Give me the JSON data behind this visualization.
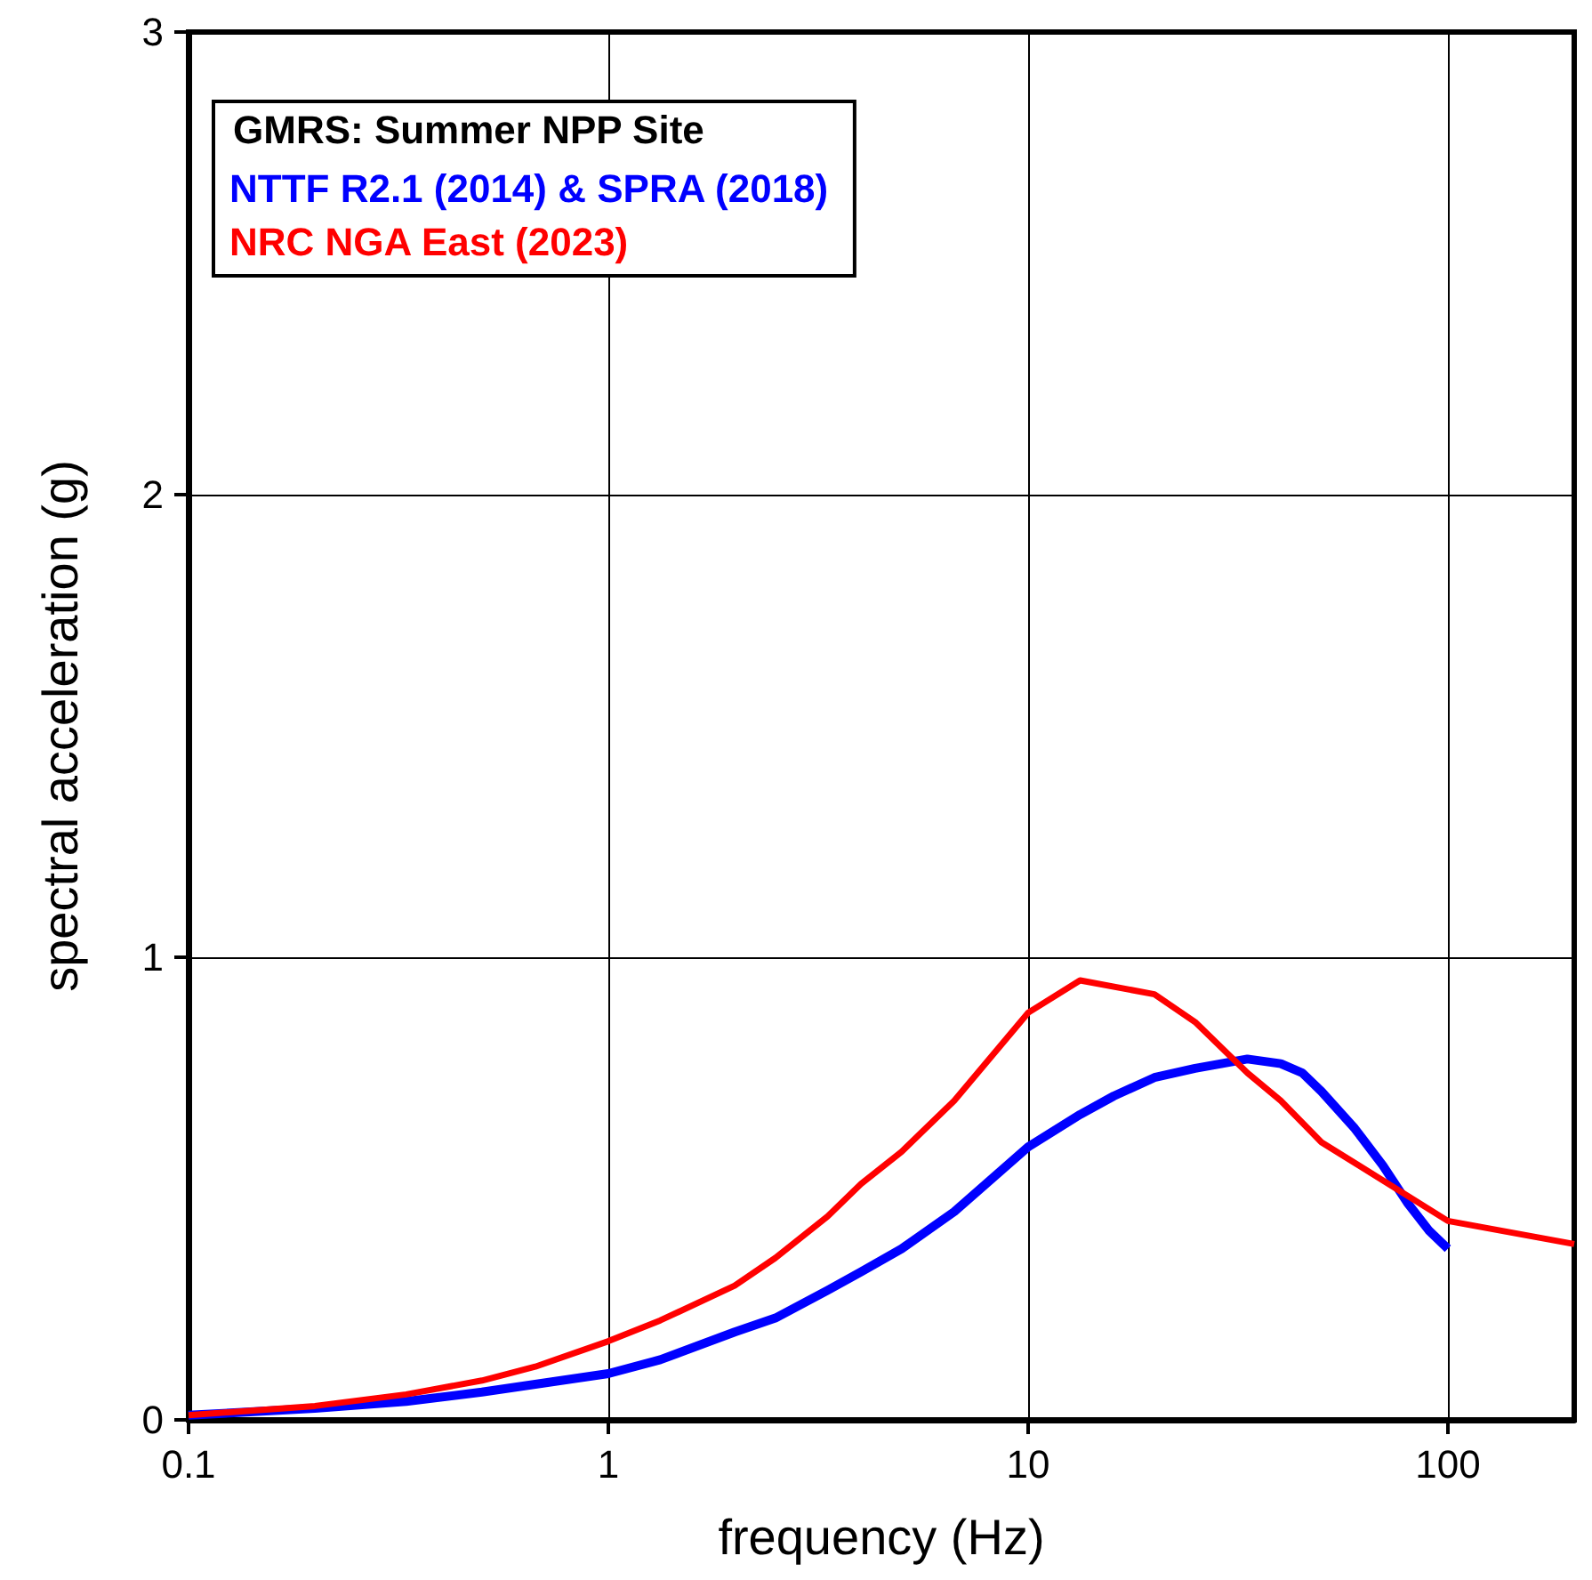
{
  "chart_data": {
    "type": "line",
    "xlabel": "frequency (Hz)",
    "ylabel": "spectral acceleration (g)",
    "legend_title": "GMRS: Summer NPP Site",
    "log": "x",
    "xlim": [
      0.1,
      200
    ],
    "xticks": [
      0.1,
      1,
      10,
      100
    ],
    "ylim": [
      0,
      3
    ],
    "yticks": [
      0,
      1,
      2,
      3
    ],
    "grid": true,
    "legend": "top left",
    "marker": "none",
    "line_style": "solid",
    "series": [
      {
        "name": "NTTF R2.1 (2014) & SPRA (2018)",
        "color": "#0000ff",
        "x": [
          0.1,
          0.2,
          0.33,
          0.5,
          1,
          1.33,
          2,
          2.5,
          3.33,
          4,
          5,
          6.67,
          10,
          13.3,
          16,
          20,
          25,
          33.3,
          40,
          45,
          50,
          60,
          70,
          80,
          90,
          100
        ],
        "values": [
          0.01,
          0.025,
          0.04,
          0.06,
          0.1,
          0.13,
          0.19,
          0.22,
          0.28,
          0.32,
          0.37,
          0.45,
          0.59,
          0.66,
          0.7,
          0.74,
          0.76,
          0.78,
          0.77,
          0.75,
          0.71,
          0.63,
          0.55,
          0.47,
          0.41,
          0.37
        ]
      },
      {
        "name": "NRC NGA East (2023)",
        "color": "#ff0000",
        "x": [
          0.1,
          0.2,
          0.33,
          0.5,
          0.67,
          1,
          1.33,
          2,
          2.5,
          3.33,
          4,
          5,
          6.67,
          10,
          13.3,
          20,
          25,
          33.3,
          40,
          50,
          100,
          200
        ],
        "values": [
          0.01,
          0.03,
          0.055,
          0.085,
          0.115,
          0.17,
          0.215,
          0.29,
          0.35,
          0.44,
          0.51,
          0.58,
          0.69,
          0.88,
          0.95,
          0.92,
          0.86,
          0.75,
          0.69,
          0.6,
          0.43,
          0.38
        ]
      }
    ]
  }
}
